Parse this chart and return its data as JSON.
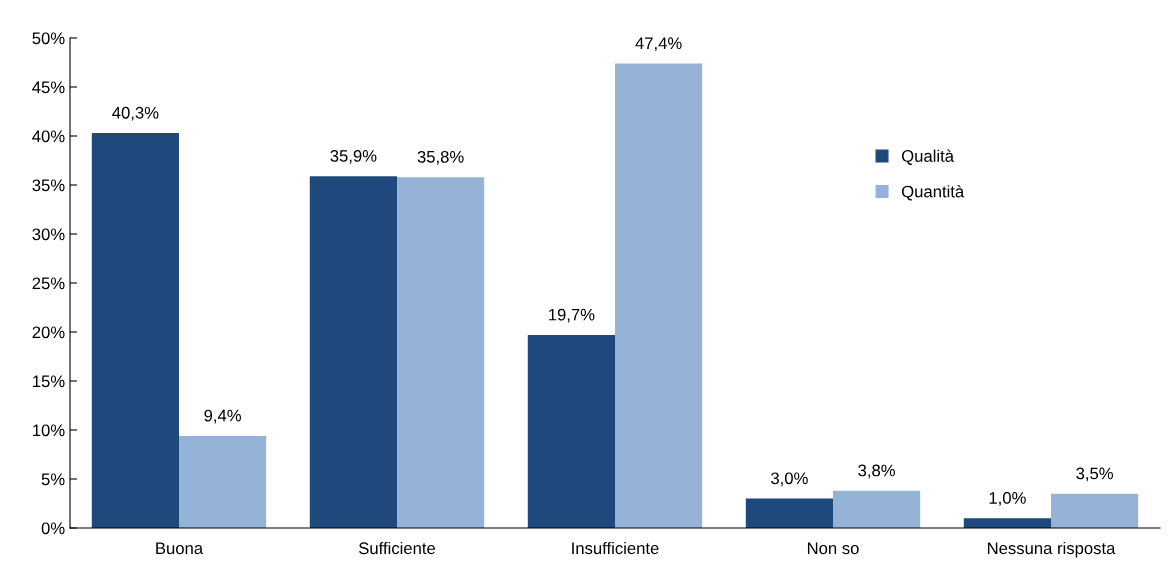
{
  "chart_data": {
    "type": "bar",
    "categories": [
      "Buona",
      "Sufficiente",
      "Insufficiente",
      "Non so",
      "Nessuna risposta"
    ],
    "series": [
      {
        "name": "Qualità",
        "color": "#1f497d",
        "values": [
          40.3,
          35.9,
          19.7,
          3.0,
          1.0
        ],
        "value_labels": [
          "40,3%",
          "35,9%",
          "19,7%",
          "3,0%",
          "1,0%"
        ]
      },
      {
        "name": "Quantità",
        "color": "#95b3d7",
        "values": [
          9.4,
          35.8,
          47.4,
          3.8,
          3.5
        ],
        "value_labels": [
          "9,4%",
          "35,8%",
          "47,4%",
          "3,8%",
          "3,5%"
        ]
      }
    ],
    "ylim": [
      0,
      50
    ],
    "yticks": [
      {
        "value": 0,
        "label": "0%"
      },
      {
        "value": 5,
        "label": "5%"
      },
      {
        "value": 10,
        "label": "10%"
      },
      {
        "value": 15,
        "label": "15%"
      },
      {
        "value": 20,
        "label": "20%"
      },
      {
        "value": 25,
        "label": "25%"
      },
      {
        "value": 30,
        "label": "30%"
      },
      {
        "value": 35,
        "label": "35%"
      },
      {
        "value": 40,
        "label": "40%"
      },
      {
        "value": 45,
        "label": "45%"
      },
      {
        "value": 50,
        "label": "50%"
      }
    ],
    "grid": false,
    "legend": "right"
  }
}
